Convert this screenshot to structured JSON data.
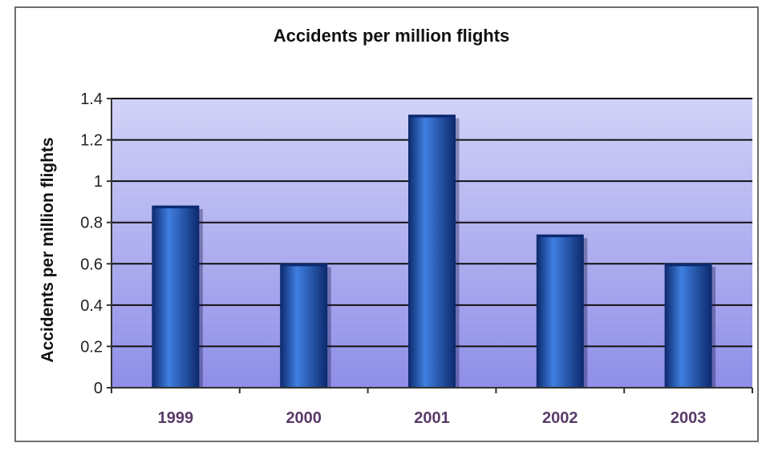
{
  "chart_data": {
    "type": "bar",
    "title": "Accidents per million flights",
    "xlabel": "",
    "ylabel": "Accidents per million flights",
    "categories": [
      "1999",
      "2000",
      "2001",
      "2002",
      "2003"
    ],
    "values": [
      0.88,
      0.6,
      1.32,
      0.74,
      0.6
    ],
    "ylim": [
      0,
      1.4
    ],
    "yticks": [
      "0",
      "0.2",
      "0.4",
      "0.6",
      "0.8",
      "1",
      "1.2",
      "1.4"
    ],
    "grid": true,
    "legend": "none",
    "colors": {
      "bar": "#1a4fb0",
      "bar_light": "#3f7fe0",
      "bar_dark": "#0d2a6e",
      "plot_top": "#d2d2f8",
      "plot_bottom": "#8e8ee8",
      "gridline": "#111111"
    }
  }
}
